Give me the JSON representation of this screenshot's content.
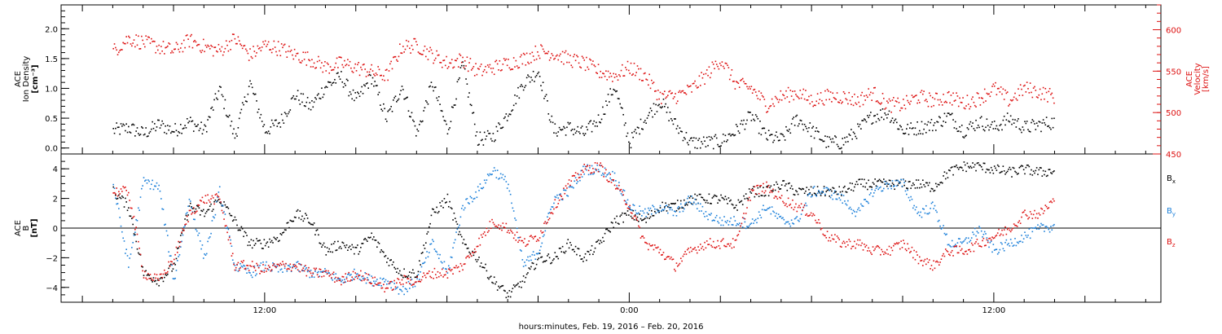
{
  "chart_data": [
    {
      "type": "scatter",
      "panel": "top",
      "left_ylabel": [
        "ACE",
        "Ion Density",
        "[cm⁻³]"
      ],
      "right_ylabel": [
        "ACE",
        "Velocity",
        "[km/s]"
      ],
      "left_ylim": [
        -0.1,
        2.4
      ],
      "left_ticks": [
        "0.0",
        "0.5",
        "1.0",
        "1.5",
        "2.0"
      ],
      "right_ylim": [
        450,
        630
      ],
      "right_ticks": [
        "450",
        "500",
        "550",
        "600"
      ],
      "x_unit": "hours since 2016-02-19 00:00 UT",
      "series": [
        {
          "axis": "left",
          "color": "#000000",
          "x": [
            7.0,
            7.5,
            8.0,
            8.5,
            9.0,
            9.5,
            10.0,
            10.5,
            11.0,
            11.5,
            12.0,
            12.5,
            13.0,
            13.5,
            14.0,
            14.5,
            15.0,
            15.5,
            16.0,
            16.5,
            17.0,
            17.5,
            18.0,
            18.5,
            19.0,
            19.5,
            20.0,
            20.5,
            21.0,
            21.5,
            22.0,
            22.5,
            23.0,
            23.5,
            24.0,
            24.5,
            25.0,
            25.5,
            26.0,
            26.5,
            27.0,
            27.5,
            28.0,
            28.5,
            29.0,
            29.5,
            30.0,
            30.5,
            31.0,
            31.5,
            32.0,
            32.5,
            33.0,
            33.5,
            34.0,
            34.5,
            35.0,
            35.5,
            36.0,
            36.5,
            37.0,
            37.5,
            38.0
          ],
          "y": [
            0.3,
            0.35,
            0.25,
            0.4,
            0.3,
            0.45,
            0.3,
            1.0,
            0.2,
            1.1,
            0.3,
            0.45,
            0.9,
            0.7,
            1.05,
            1.2,
            0.8,
            1.2,
            0.5,
            1.05,
            0.25,
            1.1,
            0.3,
            1.4,
            0.15,
            0.2,
            0.6,
            1.1,
            1.3,
            0.3,
            0.35,
            0.25,
            0.5,
            1.05,
            0.1,
            0.5,
            0.8,
            0.4,
            0.1,
            0.1,
            0.12,
            0.3,
            0.55,
            0.2,
            0.15,
            0.5,
            0.3,
            0.1,
            0.1,
            0.3,
            0.55,
            0.6,
            0.3,
            0.35,
            0.4,
            0.55,
            0.3,
            0.45,
            0.35,
            0.5,
            0.35,
            0.4,
            0.45
          ]
        },
        {
          "axis": "right",
          "color": "#dd1010",
          "x": [
            7.0,
            7.5,
            8.0,
            8.5,
            9.0,
            9.5,
            10.0,
            10.5,
            11.0,
            11.5,
            12.0,
            12.5,
            13.0,
            13.5,
            14.0,
            14.5,
            15.0,
            15.5,
            16.0,
            16.5,
            17.0,
            17.5,
            18.0,
            18.5,
            19.0,
            19.5,
            20.0,
            20.5,
            21.0,
            21.5,
            22.0,
            22.5,
            23.0,
            23.5,
            24.0,
            24.5,
            25.0,
            25.5,
            26.0,
            26.5,
            27.0,
            27.5,
            28.0,
            28.5,
            29.0,
            29.5,
            30.0,
            30.5,
            31.0,
            31.5,
            32.0,
            32.5,
            33.0,
            33.5,
            34.0,
            34.5,
            35.0,
            35.5,
            36.0,
            36.5,
            37.0,
            37.5,
            38.0
          ],
          "y": [
            575,
            590,
            585,
            580,
            575,
            588,
            580,
            575,
            590,
            570,
            582,
            578,
            570,
            565,
            555,
            560,
            555,
            550,
            545,
            580,
            582,
            570,
            560,
            565,
            550,
            555,
            560,
            565,
            575,
            572,
            565,
            560,
            550,
            545,
            555,
            545,
            520,
            520,
            528,
            545,
            565,
            535,
            530,
            510,
            520,
            525,
            515,
            520,
            520,
            515,
            525,
            510,
            510,
            520,
            515,
            520,
            512,
            518,
            530,
            515,
            530,
            525,
            520
          ]
        }
      ]
    },
    {
      "type": "scatter",
      "panel": "bottom",
      "ylabel": [
        "ACE",
        "B",
        "[nT]"
      ],
      "ylim": [
        -5,
        5
      ],
      "ticks": [
        "-4",
        "-2",
        "0",
        "2",
        "4"
      ],
      "x_unit": "hours since 2016-02-19 00:00 UT",
      "series": [
        {
          "name": "Bx",
          "label_main": "B",
          "label_sub": "x",
          "color": "#000000",
          "x": [
            7.0,
            7.5,
            8.0,
            8.5,
            9.0,
            9.5,
            10.0,
            10.5,
            11.0,
            11.5,
            12.0,
            12.5,
            13.0,
            13.5,
            14.0,
            14.5,
            15.0,
            15.5,
            16.0,
            16.5,
            17.0,
            17.5,
            18.0,
            18.5,
            19.0,
            19.5,
            20.0,
            20.5,
            21.0,
            21.5,
            22.0,
            22.5,
            23.0,
            23.5,
            24.0,
            24.5,
            25.0,
            25.5,
            26.0,
            26.5,
            27.0,
            27.5,
            28.0,
            28.5,
            29.0,
            29.5,
            30.0,
            30.5,
            31.0,
            31.5,
            32.0,
            32.5,
            33.0,
            33.5,
            34.0,
            34.5,
            35.0,
            35.5,
            36.0,
            36.5,
            37.0,
            37.5,
            38.0
          ],
          "y": [
            2.5,
            1.5,
            -3.0,
            -3.5,
            -2.5,
            1.5,
            1.0,
            2.0,
            0.5,
            -1.0,
            -1.0,
            -0.5,
            1.0,
            0.5,
            -1.5,
            -1.0,
            -1.5,
            -0.5,
            -2.0,
            -3.0,
            -3.0,
            1.0,
            2.0,
            -1.0,
            -2.0,
            -3.5,
            -4.5,
            -3.5,
            -2.0,
            -2.0,
            -1.0,
            -2.0,
            -1.0,
            0.5,
            1.0,
            0.5,
            1.5,
            1.5,
            2.0,
            2.0,
            2.0,
            1.5,
            2.5,
            2.5,
            3.0,
            2.5,
            2.5,
            2.5,
            2.5,
            3.0,
            3.0,
            3.0,
            3.0,
            3.0,
            2.8,
            3.8,
            4.2,
            4.2,
            4.0,
            3.8,
            4.0,
            3.8,
            3.9
          ]
        },
        {
          "name": "By",
          "label_main": "B",
          "label_sub": "y",
          "color": "#1a7fd9",
          "x": [
            7.0,
            7.5,
            8.0,
            8.5,
            9.0,
            9.5,
            10.0,
            10.5,
            11.0,
            11.5,
            12.0,
            12.5,
            13.0,
            13.5,
            14.0,
            14.5,
            15.0,
            15.5,
            16.0,
            16.5,
            17.0,
            17.5,
            18.0,
            18.5,
            19.0,
            19.5,
            20.0,
            20.5,
            21.0,
            21.5,
            22.0,
            22.5,
            23.0,
            23.5,
            24.0,
            24.5,
            25.0,
            25.5,
            26.0,
            26.5,
            27.0,
            27.5,
            28.0,
            28.5,
            29.0,
            29.5,
            30.0,
            30.5,
            31.0,
            31.5,
            32.0,
            32.5,
            33.0,
            33.5,
            34.0,
            34.5,
            35.0,
            35.5,
            36.0,
            36.5,
            37.0,
            37.5,
            38.0
          ],
          "y": [
            3.0,
            -2.5,
            3.2,
            2.8,
            -3.5,
            2.0,
            -2.0,
            2.5,
            -2.5,
            -3.0,
            -2.5,
            -2.8,
            -2.5,
            -3.0,
            -3.0,
            -3.5,
            -3.0,
            -3.5,
            -3.5,
            -4.2,
            -3.5,
            -1.0,
            -3.0,
            1.5,
            2.5,
            4.0,
            3.0,
            -2.5,
            -1.5,
            2.0,
            2.5,
            4.0,
            4.0,
            3.5,
            1.5,
            1.0,
            1.5,
            1.0,
            2.0,
            1.0,
            0.5,
            0.5,
            0.3,
            1.5,
            0.5,
            0.5,
            2.5,
            2.5,
            2.0,
            1.0,
            2.5,
            3.0,
            3.0,
            1.0,
            1.5,
            -1.0,
            -1.0,
            0.0,
            -1.5,
            -1.0,
            -0.5,
            0.0,
            0.2
          ]
        },
        {
          "name": "Bz",
          "label_main": "B",
          "label_sub": "z",
          "color": "#dd1010",
          "x": [
            7.0,
            7.5,
            8.0,
            8.5,
            9.0,
            9.5,
            10.0,
            10.5,
            11.0,
            11.5,
            12.0,
            12.5,
            13.0,
            13.5,
            14.0,
            14.5,
            15.0,
            15.5,
            16.0,
            16.5,
            17.0,
            17.5,
            18.0,
            18.5,
            19.0,
            19.5,
            20.0,
            20.5,
            21.0,
            21.5,
            22.0,
            22.5,
            23.0,
            23.5,
            24.0,
            24.5,
            25.0,
            25.5,
            26.0,
            26.5,
            27.0,
            27.5,
            28.0,
            28.5,
            29.0,
            29.5,
            30.0,
            30.5,
            31.0,
            31.5,
            32.0,
            32.5,
            33.0,
            33.5,
            34.0,
            34.5,
            35.0,
            35.5,
            36.0,
            36.5,
            37.0,
            37.5,
            38.0
          ],
          "y": [
            2.5,
            2.5,
            -3.0,
            -3.5,
            -2.0,
            1.0,
            2.0,
            2.0,
            -2.5,
            -2.5,
            -2.8,
            -2.5,
            -2.5,
            -3.0,
            -3.0,
            -3.5,
            -3.0,
            -3.5,
            -4.0,
            -3.5,
            -3.5,
            -3.0,
            -3.0,
            -2.5,
            -1.0,
            0.5,
            0.0,
            -1.0,
            -0.5,
            1.5,
            3.0,
            4.0,
            4.2,
            3.0,
            1.5,
            -1.0,
            -1.5,
            -2.5,
            -1.5,
            -1.0,
            -1.0,
            -1.0,
            2.5,
            2.8,
            2.0,
            1.5,
            1.0,
            -0.5,
            -1.0,
            -1.0,
            -1.5,
            -1.5,
            -1.0,
            -2.0,
            -2.5,
            -1.5,
            -1.5,
            -1.0,
            -0.5,
            0.0,
            1.0,
            1.0,
            2.0
          ]
        }
      ]
    }
  ],
  "x_axis": {
    "xlabel": "hours:minutes, Feb. 19, 2016 – Feb. 20, 2016",
    "ticks": [
      {
        "hours": 12,
        "label": "12:00"
      },
      {
        "hours": 24,
        "label": "0:00"
      },
      {
        "hours": 36,
        "label": "12:00"
      }
    ],
    "xlim": [
      5.3,
      41.5
    ]
  }
}
